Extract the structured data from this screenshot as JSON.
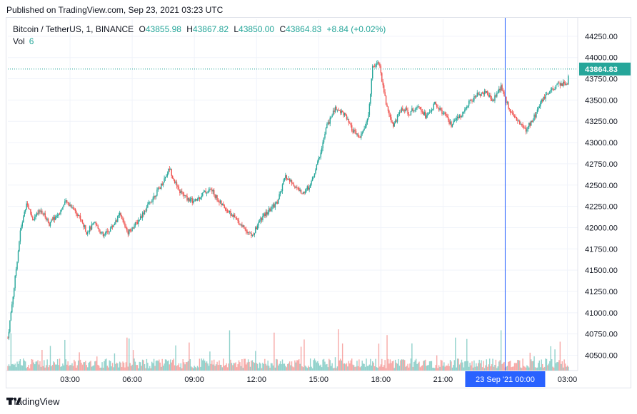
{
  "published": "Published on TradingView.com, Sep 23, 2021 03:23 UTC",
  "legend": {
    "symbol": "Bitcoin / TetherUS, 1, BINANCE",
    "o_label": "O",
    "o": "43855.98",
    "h_label": "H",
    "h": "43867.82",
    "l_label": "L",
    "l": "43850.00",
    "c_label": "C",
    "c": "43864.83",
    "change": "+8.84 (+0.02%)",
    "vol_label": "Vol",
    "vol": "6"
  },
  "footer": {
    "brand": "TradingView",
    "logo_icon": "tradingview-logo-icon"
  },
  "colors": {
    "up": "#26a69a",
    "down": "#ef5350",
    "crosshair": "#2962ff",
    "grid": "#f0f3fa"
  },
  "chart_data": {
    "type": "candlestick",
    "y_ticks": [
      "44250.00",
      "44000.00",
      "43750.00",
      "43500.00",
      "43250.00",
      "43000.00",
      "42750.00",
      "42500.00",
      "42250.00",
      "42000.00",
      "41750.00",
      "41500.00",
      "41250.00",
      "41000.00",
      "40750.00",
      "40500.00"
    ],
    "y_tick_values": [
      44250,
      44000,
      43750,
      43500,
      43250,
      43000,
      42750,
      42500,
      42250,
      42000,
      41750,
      41500,
      41250,
      41000,
      40750,
      40500
    ],
    "x_ticks": [
      "03:00",
      "06:00",
      "09:00",
      "12:00",
      "15:00",
      "18:00",
      "21:00",
      "03:00"
    ],
    "x_tick_hours": [
      3,
      6,
      9,
      12,
      15,
      18,
      21,
      27
    ],
    "ylim": [
      40320,
      44450
    ],
    "xlim_hours": [
      0.0,
      27.5
    ],
    "last_price": "43864.83",
    "last_price_value": 43864.83,
    "crosshair_label": "23 Sep '21   00:00",
    "crosshair_hour": 24,
    "price_path": [
      [
        0.0,
        40700
      ],
      [
        0.3,
        41300
      ],
      [
        0.6,
        41950
      ],
      [
        0.9,
        42300
      ],
      [
        1.2,
        42100
      ],
      [
        1.6,
        42200
      ],
      [
        2.0,
        42050
      ],
      [
        2.4,
        42150
      ],
      [
        2.8,
        42300
      ],
      [
        3.1,
        42250
      ],
      [
        3.4,
        42150
      ],
      [
        3.8,
        41950
      ],
      [
        4.2,
        42050
      ],
      [
        4.6,
        41900
      ],
      [
        5.0,
        42000
      ],
      [
        5.4,
        42150
      ],
      [
        5.8,
        41950
      ],
      [
        6.2,
        42050
      ],
      [
        6.6,
        42200
      ],
      [
        7.0,
        42350
      ],
      [
        7.4,
        42500
      ],
      [
        7.8,
        42700
      ],
      [
        8.2,
        42450
      ],
      [
        8.6,
        42350
      ],
      [
        9.0,
        42300
      ],
      [
        9.4,
        42400
      ],
      [
        9.8,
        42450
      ],
      [
        10.2,
        42300
      ],
      [
        10.6,
        42200
      ],
      [
        11.0,
        42100
      ],
      [
        11.4,
        42000
      ],
      [
        11.8,
        41900
      ],
      [
        12.2,
        42100
      ],
      [
        12.6,
        42200
      ],
      [
        13.0,
        42300
      ],
      [
        13.4,
        42600
      ],
      [
        13.8,
        42500
      ],
      [
        14.2,
        42400
      ],
      [
        14.6,
        42500
      ],
      [
        15.0,
        42800
      ],
      [
        15.4,
        43200
      ],
      [
        15.8,
        43400
      ],
      [
        16.2,
        43350
      ],
      [
        16.6,
        43150
      ],
      [
        17.0,
        43050
      ],
      [
        17.4,
        43300
      ],
      [
        17.6,
        43900
      ],
      [
        17.9,
        43950
      ],
      [
        18.3,
        43400
      ],
      [
        18.6,
        43200
      ],
      [
        19.0,
        43400
      ],
      [
        19.4,
        43350
      ],
      [
        19.8,
        43450
      ],
      [
        20.2,
        43300
      ],
      [
        20.6,
        43450
      ],
      [
        21.0,
        43350
      ],
      [
        21.4,
        43200
      ],
      [
        21.8,
        43300
      ],
      [
        22.2,
        43450
      ],
      [
        22.6,
        43550
      ],
      [
        23.0,
        43600
      ],
      [
        23.4,
        43500
      ],
      [
        23.8,
        43650
      ],
      [
        24.2,
        43400
      ],
      [
        24.6,
        43250
      ],
      [
        25.0,
        43150
      ],
      [
        25.4,
        43300
      ],
      [
        25.8,
        43500
      ],
      [
        26.2,
        43600
      ],
      [
        26.6,
        43700
      ],
      [
        27.0,
        43680
      ],
      [
        27.1,
        43865
      ]
    ]
  }
}
